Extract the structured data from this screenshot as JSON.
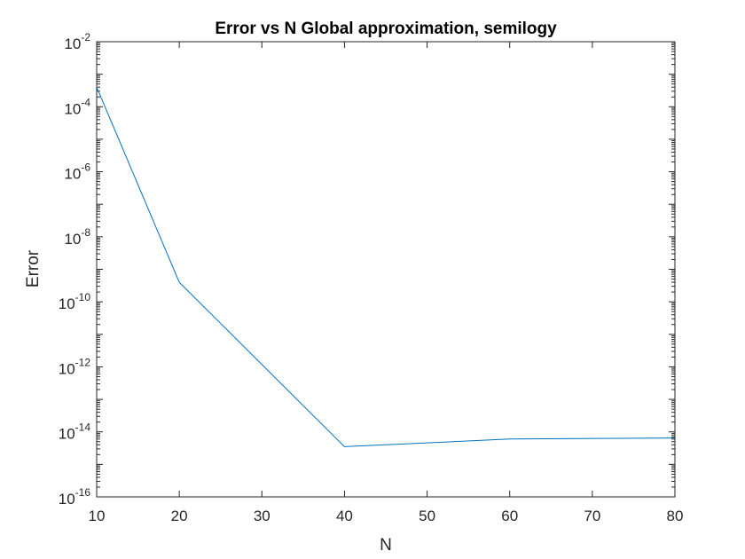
{
  "chart_data": {
    "type": "line",
    "title": "Error vs N Global approximation, semilogy",
    "xlabel": "N",
    "ylabel": "Error",
    "xlim": [
      10,
      80
    ],
    "ylim": [
      1e-16,
      0.01
    ],
    "yscale": "log",
    "grid": false,
    "xticks": [
      10,
      20,
      30,
      40,
      50,
      60,
      70,
      80
    ],
    "yticks": [
      {
        "base": "10",
        "exp": "-2"
      },
      {
        "base": "10",
        "exp": "-4"
      },
      {
        "base": "10",
        "exp": "-6"
      },
      {
        "base": "10",
        "exp": "-8"
      },
      {
        "base": "10",
        "exp": "-10"
      },
      {
        "base": "10",
        "exp": "-12"
      },
      {
        "base": "10",
        "exp": "-14"
      },
      {
        "base": "10",
        "exp": "-16"
      }
    ],
    "series": [
      {
        "x": [
          10,
          20,
          40,
          60,
          80
        ],
        "y": [
          0.0004,
          4e-10,
          3.5e-15,
          6e-15,
          6.5e-15
        ],
        "color": "#0072BD"
      }
    ]
  }
}
